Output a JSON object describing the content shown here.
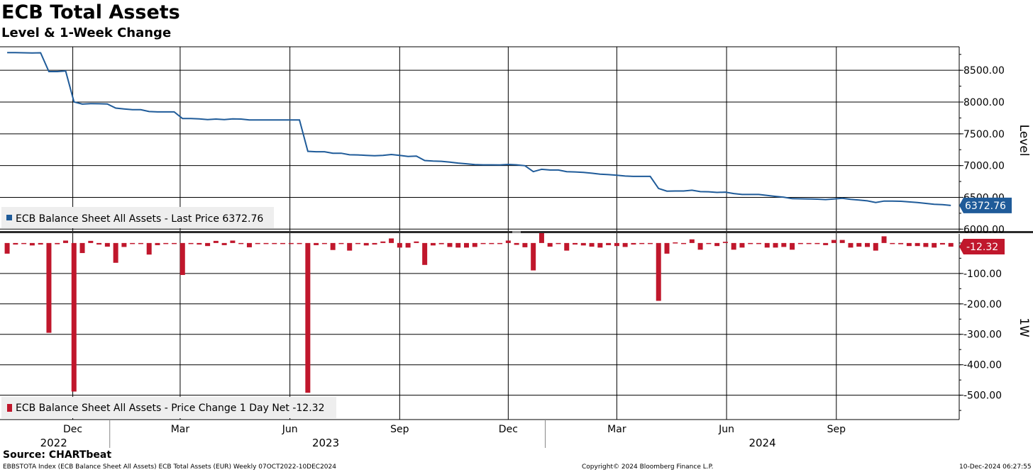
{
  "header": {
    "title": "ECB Total Assets",
    "subtitle": "Level & 1-Week Change"
  },
  "source": "Source: CHARTbeat",
  "footer": {
    "left": "EBBSTOTA Index (ECB Balance Sheet All Assets) ECB Total Assets (EUR)  Weekly 07OCT2022-10DEC2024",
    "center": "Copyright© 2024 Bloomberg Finance L.P.",
    "right": "10-Dec-2024 06:27:55"
  },
  "colors": {
    "level": "#1f5b99",
    "change": "#c0172c",
    "grid": "#000000"
  },
  "chart_data": [
    {
      "type": "line",
      "ylabel": "Level",
      "ylim": [
        5970,
        8870
      ],
      "yticks": [
        "8500.00",
        "8000.00",
        "7500.00",
        "7000.00",
        "6500.00",
        "6000.00"
      ],
      "legend": "ECB Balance Sheet All Assets - Last Price 6372.76",
      "last_value_label": "6372.76",
      "series": [
        {
          "name": "ECB Balance Sheet All Assets - Last Price",
          "points": [
            [
              "2022-10-07",
              8778
            ],
            [
              "2022-10-14",
              8778
            ],
            [
              "2022-10-21",
              8775
            ],
            [
              "2022-10-28",
              8773
            ],
            [
              "2022-11-04",
              8775
            ],
            [
              "2022-11-11",
              8480
            ],
            [
              "2022-11-18",
              8480
            ],
            [
              "2022-11-25",
              8490
            ],
            [
              "2022-12-02",
              8002
            ],
            [
              "2022-12-09",
              7968
            ],
            [
              "2022-12-16",
              7975
            ],
            [
              "2022-12-23",
              7973
            ],
            [
              "2022-12-30",
              7970
            ],
            [
              "2023-01-06",
              7905
            ],
            [
              "2023-01-13",
              7892
            ],
            [
              "2023-01-20",
              7880
            ],
            [
              "2023-01-27",
              7880
            ],
            [
              "2023-02-03",
              7850
            ],
            [
              "2023-02-10",
              7845
            ],
            [
              "2023-02-17",
              7845
            ],
            [
              "2023-02-24",
              7845
            ],
            [
              "2023-03-03",
              7740
            ],
            [
              "2023-03-10",
              7740
            ],
            [
              "2023-03-17",
              7735
            ],
            [
              "2023-03-24",
              7725
            ],
            [
              "2023-03-31",
              7732
            ],
            [
              "2023-04-07",
              7725
            ],
            [
              "2023-04-14",
              7735
            ],
            [
              "2023-04-21",
              7732
            ],
            [
              "2023-04-28",
              7718
            ],
            [
              "2023-05-05",
              7718
            ],
            [
              "2023-05-12",
              7718
            ],
            [
              "2023-05-19",
              7718
            ],
            [
              "2023-05-26",
              7718
            ],
            [
              "2023-06-02",
              7718
            ],
            [
              "2023-06-09",
              7718
            ],
            [
              "2023-06-16",
              7225
            ],
            [
              "2023-06-23",
              7218
            ],
            [
              "2023-06-30",
              7218
            ],
            [
              "2023-07-07",
              7195
            ],
            [
              "2023-07-14",
              7195
            ],
            [
              "2023-07-21",
              7170
            ],
            [
              "2023-07-28",
              7168
            ],
            [
              "2023-08-04",
              7160
            ],
            [
              "2023-08-11",
              7155
            ],
            [
              "2023-08-18",
              7160
            ],
            [
              "2023-08-25",
              7175
            ],
            [
              "2023-09-01",
              7160
            ],
            [
              "2023-09-08",
              7145
            ],
            [
              "2023-09-15",
              7150
            ],
            [
              "2023-09-22",
              7080
            ],
            [
              "2023-09-29",
              7072
            ],
            [
              "2023-10-06",
              7068
            ],
            [
              "2023-10-13",
              7055
            ],
            [
              "2023-10-20",
              7040
            ],
            [
              "2023-10-27",
              7028
            ],
            [
              "2023-11-03",
              7015
            ],
            [
              "2023-11-10",
              7012
            ],
            [
              "2023-11-17",
              7012
            ],
            [
              "2023-11-24",
              7010
            ],
            [
              "2023-12-01",
              7018
            ],
            [
              "2023-12-08",
              7012
            ],
            [
              "2023-12-15",
              6998
            ],
            [
              "2023-12-22",
              6905
            ],
            [
              "2023-12-29",
              6942
            ],
            [
              "2024-01-05",
              6930
            ],
            [
              "2024-01-12",
              6930
            ],
            [
              "2024-01-19",
              6905
            ],
            [
              "2024-01-26",
              6900
            ],
            [
              "2024-02-02",
              6892
            ],
            [
              "2024-02-09",
              6880
            ],
            [
              "2024-02-16",
              6865
            ],
            [
              "2024-02-23",
              6858
            ],
            [
              "2024-03-01",
              6848
            ],
            [
              "2024-03-08",
              6835
            ],
            [
              "2024-03-15",
              6830
            ],
            [
              "2024-03-22",
              6830
            ],
            [
              "2024-03-29",
              6830
            ],
            [
              "2024-04-05",
              6640
            ],
            [
              "2024-04-12",
              6598
            ],
            [
              "2024-04-19",
              6600
            ],
            [
              "2024-04-26",
              6600
            ],
            [
              "2024-05-03",
              6612
            ],
            [
              "2024-05-10",
              6590
            ],
            [
              "2024-05-17",
              6588
            ],
            [
              "2024-05-24",
              6578
            ],
            [
              "2024-05-31",
              6582
            ],
            [
              "2024-06-07",
              6560
            ],
            [
              "2024-06-14",
              6545
            ],
            [
              "2024-06-21",
              6545
            ],
            [
              "2024-06-28",
              6545
            ],
            [
              "2024-07-05",
              6530
            ],
            [
              "2024-07-12",
              6515
            ],
            [
              "2024-07-19",
              6502
            ],
            [
              "2024-07-26",
              6480
            ],
            [
              "2024-08-02",
              6478
            ],
            [
              "2024-08-09",
              6475
            ],
            [
              "2024-08-16",
              6472
            ],
            [
              "2024-08-23",
              6465
            ],
            [
              "2024-08-30",
              6475
            ],
            [
              "2024-09-06",
              6485
            ],
            [
              "2024-09-13",
              6470
            ],
            [
              "2024-09-20",
              6458
            ],
            [
              "2024-09-27",
              6445
            ],
            [
              "2024-10-04",
              6420
            ],
            [
              "2024-10-11",
              6442
            ],
            [
              "2024-10-18",
              6442
            ],
            [
              "2024-10-25",
              6438
            ],
            [
              "2024-11-01",
              6428
            ],
            [
              "2024-11-08",
              6418
            ],
            [
              "2024-11-15",
              6405
            ],
            [
              "2024-11-22",
              6390
            ],
            [
              "2024-11-29",
              6385
            ],
            [
              "2024-12-06",
              6373
            ]
          ]
        }
      ]
    },
    {
      "type": "bar",
      "ylabel": "1W",
      "ylim": [
        -580,
        30
      ],
      "yticks": [
        "-100.00",
        "-200.00",
        "-300.00",
        "-400.00",
        "-500.00"
      ],
      "legend": "ECB Balance Sheet All Assets - Price Change 1 Day Net -12.32",
      "last_value_label": "-12.32",
      "series": [
        {
          "name": "ECB Balance Sheet All Assets - Price Change 1 Day Net",
          "points": [
            [
              "2022-10-07",
              -35
            ],
            [
              "2022-10-14",
              -5
            ],
            [
              "2022-10-21",
              -3
            ],
            [
              "2022-10-28",
              -8
            ],
            [
              "2022-11-04",
              -5
            ],
            [
              "2022-11-11",
              -295
            ],
            [
              "2022-11-18",
              -4
            ],
            [
              "2022-11-25",
              8
            ],
            [
              "2022-12-02",
              -488
            ],
            [
              "2022-12-09",
              -33
            ],
            [
              "2022-12-16",
              7
            ],
            [
              "2022-12-23",
              -5
            ],
            [
              "2022-12-30",
              -12
            ],
            [
              "2023-01-06",
              -65
            ],
            [
              "2023-01-13",
              -13
            ],
            [
              "2023-01-20",
              -2
            ],
            [
              "2023-01-27",
              -2
            ],
            [
              "2023-02-03",
              -38
            ],
            [
              "2023-02-10",
              -7
            ],
            [
              "2023-02-17",
              -2
            ],
            [
              "2023-02-24",
              -2
            ],
            [
              "2023-03-03",
              -105
            ],
            [
              "2023-03-10",
              -1
            ],
            [
              "2023-03-17",
              -5
            ],
            [
              "2023-03-24",
              -10
            ],
            [
              "2023-03-31",
              7
            ],
            [
              "2023-04-07",
              -7
            ],
            [
              "2023-04-14",
              8
            ],
            [
              "2023-04-21",
              -3
            ],
            [
              "2023-04-28",
              -14
            ],
            [
              "2023-05-05",
              -1
            ],
            [
              "2023-05-12",
              -1
            ],
            [
              "2023-05-19",
              -1
            ],
            [
              "2023-05-26",
              -1
            ],
            [
              "2023-06-02",
              -1
            ],
            [
              "2023-06-09",
              -1
            ],
            [
              "2023-06-16",
              -492
            ],
            [
              "2023-06-23",
              -7
            ],
            [
              "2023-06-30",
              -1
            ],
            [
              "2023-07-07",
              -23
            ],
            [
              "2023-07-14",
              -1
            ],
            [
              "2023-07-21",
              -25
            ],
            [
              "2023-07-28",
              -2
            ],
            [
              "2023-08-04",
              -8
            ],
            [
              "2023-08-11",
              -5
            ],
            [
              "2023-08-18",
              5
            ],
            [
              "2023-08-25",
              15
            ],
            [
              "2023-09-01",
              -15
            ],
            [
              "2023-09-08",
              -15
            ],
            [
              "2023-09-15",
              5
            ],
            [
              "2023-09-22",
              -72
            ],
            [
              "2023-09-29",
              -8
            ],
            [
              "2023-10-06",
              -4
            ],
            [
              "2023-10-13",
              -13
            ],
            [
              "2023-10-20",
              -15
            ],
            [
              "2023-10-27",
              -15
            ],
            [
              "2023-11-03",
              -13
            ],
            [
              "2023-11-10",
              -3
            ],
            [
              "2023-11-17",
              0
            ],
            [
              "2023-11-24",
              -2
            ],
            [
              "2023-12-01",
              8
            ],
            [
              "2023-12-08",
              -6
            ],
            [
              "2023-12-15",
              -14
            ],
            [
              "2023-12-22",
              -90
            ],
            [
              "2023-12-29",
              37
            ],
            [
              "2024-01-05",
              -12
            ],
            [
              "2024-01-12",
              0
            ],
            [
              "2024-01-19",
              -25
            ],
            [
              "2024-01-26",
              -5
            ],
            [
              "2024-02-02",
              -8
            ],
            [
              "2024-02-09",
              -12
            ],
            [
              "2024-02-16",
              -15
            ],
            [
              "2024-02-23",
              -7
            ],
            [
              "2024-03-01",
              -10
            ],
            [
              "2024-03-08",
              -13
            ],
            [
              "2024-03-15",
              -5
            ],
            [
              "2024-03-22",
              0
            ],
            [
              "2024-03-29",
              0
            ],
            [
              "2024-04-05",
              -190
            ],
            [
              "2024-04-12",
              -35
            ],
            [
              "2024-04-19",
              2
            ],
            [
              "2024-04-26",
              0
            ],
            [
              "2024-05-03",
              12
            ],
            [
              "2024-05-10",
              -22
            ],
            [
              "2024-05-17",
              -2
            ],
            [
              "2024-05-24",
              -10
            ],
            [
              "2024-05-31",
              4
            ],
            [
              "2024-06-07",
              -22
            ],
            [
              "2024-06-14",
              -15
            ],
            [
              "2024-06-21",
              0
            ],
            [
              "2024-06-28",
              0
            ],
            [
              "2024-07-05",
              -15
            ],
            [
              "2024-07-12",
              -15
            ],
            [
              "2024-07-19",
              -13
            ],
            [
              "2024-07-26",
              -22
            ],
            [
              "2024-08-02",
              -2
            ],
            [
              "2024-08-09",
              -3
            ],
            [
              "2024-08-16",
              -3
            ],
            [
              "2024-08-23",
              -7
            ],
            [
              "2024-08-30",
              10
            ],
            [
              "2024-09-06",
              10
            ],
            [
              "2024-09-13",
              -15
            ],
            [
              "2024-09-20",
              -12
            ],
            [
              "2024-09-27",
              -13
            ],
            [
              "2024-10-04",
              -25
            ],
            [
              "2024-10-11",
              22
            ],
            [
              "2024-10-18",
              0
            ],
            [
              "2024-10-25",
              -4
            ],
            [
              "2024-11-01",
              -10
            ],
            [
              "2024-11-08",
              -10
            ],
            [
              "2024-11-15",
              -13
            ],
            [
              "2024-11-22",
              -15
            ],
            [
              "2024-11-29",
              -5
            ],
            [
              "2024-12-06",
              -12
            ]
          ]
        }
      ]
    }
  ],
  "x_axis": {
    "months": [
      {
        "label": "Dec",
        "date": "2022-12-01"
      },
      {
        "label": "Mar",
        "date": "2023-03-01"
      },
      {
        "label": "Jun",
        "date": "2023-06-01"
      },
      {
        "label": "Sep",
        "date": "2023-09-01"
      },
      {
        "label": "Dec",
        "date": "2023-12-01"
      },
      {
        "label": "Mar",
        "date": "2024-03-01"
      },
      {
        "label": "Jun",
        "date": "2024-06-01"
      },
      {
        "label": "Sep",
        "date": "2024-09-01"
      }
    ],
    "years": [
      {
        "label": "2022",
        "date": "2022-11-15"
      },
      {
        "label": "2023",
        "date": "2023-07-01"
      },
      {
        "label": "2024",
        "date": "2024-07-01"
      }
    ],
    "year_dividers": [
      "2023-01-01",
      "2024-01-01"
    ]
  }
}
